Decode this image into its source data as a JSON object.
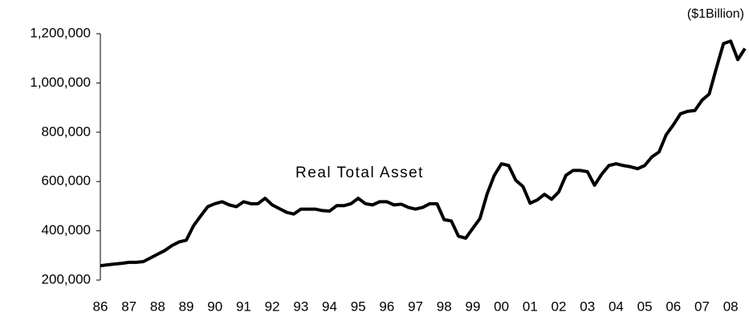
{
  "chart_data": {
    "type": "line",
    "annotation": "Real Total Asset",
    "unit_label": "($1Billion)",
    "categories": [
      "86",
      null,
      null,
      null,
      "87",
      null,
      null,
      null,
      "88",
      null,
      null,
      null,
      "89",
      null,
      null,
      null,
      "90",
      null,
      null,
      null,
      "91",
      null,
      null,
      null,
      "92",
      null,
      null,
      null,
      "93",
      null,
      null,
      null,
      "94",
      null,
      null,
      null,
      "95",
      null,
      null,
      null,
      "96",
      null,
      null,
      null,
      "97",
      null,
      null,
      null,
      "98",
      null,
      null,
      null,
      "99",
      null,
      null,
      null,
      "00",
      null,
      null,
      null,
      "01",
      null,
      null,
      null,
      "02",
      null,
      null,
      null,
      "03",
      null,
      null,
      null,
      "04",
      null,
      null,
      null,
      "05",
      null,
      null,
      null,
      "06",
      null,
      null,
      null,
      "07",
      null,
      null,
      null,
      "08",
      null,
      null
    ],
    "series": [
      {
        "color": "#000000",
        "values": [
          258000,
          262000,
          265000,
          268000,
          272000,
          272000,
          275000,
          290000,
          305000,
          320000,
          340000,
          355000,
          362000,
          420000,
          460000,
          498000,
          510000,
          518000,
          505000,
          498000,
          518000,
          510000,
          510000,
          532000,
          505000,
          490000,
          475000,
          468000,
          488000,
          488000,
          488000,
          482000,
          480000,
          502000,
          502000,
          510000,
          532000,
          510000,
          505000,
          518000,
          518000,
          505000,
          508000,
          495000,
          488000,
          495000,
          510000,
          510000,
          445000,
          440000,
          378000,
          370000,
          410000,
          450000,
          550000,
          625000,
          672000,
          665000,
          605000,
          580000,
          512000,
          525000,
          548000,
          528000,
          558000,
          625000,
          645000,
          645000,
          640000,
          585000,
          630000,
          665000,
          672000,
          665000,
          660000,
          652000,
          665000,
          700000,
          720000,
          790000,
          830000,
          875000,
          885000,
          888000,
          930000,
          955000,
          1060000,
          1160000,
          1170000,
          1095000,
          1140000
        ]
      }
    ],
    "ylim": [
      200000,
      1200000
    ],
    "yticks": [
      {
        "value": 200000,
        "label": "200,000"
      },
      {
        "value": 400000,
        "label": "400,000"
      },
      {
        "value": 600000,
        "label": "600,000"
      },
      {
        "value": 800000,
        "label": "800,000"
      },
      {
        "value": 1000000,
        "label": "1,000,000"
      },
      {
        "value": 1200000,
        "label": "1,200,000"
      }
    ],
    "grid": false
  }
}
